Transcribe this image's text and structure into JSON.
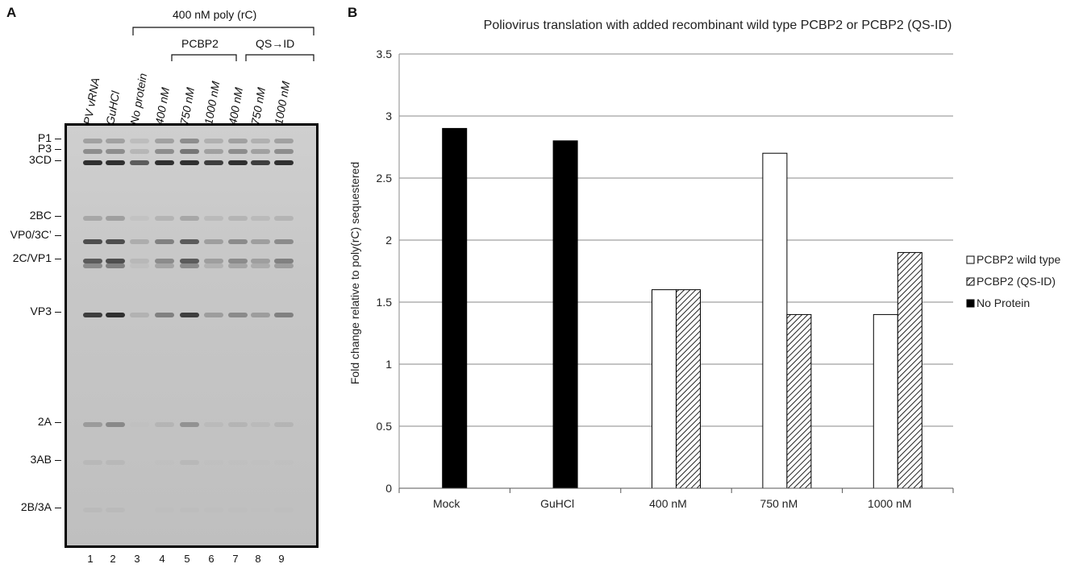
{
  "panel_a": {
    "letter": "A",
    "top_label": "400 nM poly (rC)",
    "group_wt": "PCBP2",
    "group_mut": "QS→ID",
    "lane_headers": [
      "PV vRNA",
      "GuHCl",
      "No protein",
      "400 nM",
      "750 nM",
      "1000 nM",
      "400 nM",
      "750 nM",
      "1000 nM"
    ],
    "lane_numbers": [
      "1",
      "2",
      "3",
      "4",
      "5",
      "6",
      "7",
      "8",
      "9"
    ],
    "markers": [
      "P1",
      "P3",
      "3CD",
      "2BC",
      "VP0/3C’",
      "2C/VP1",
      "VP3",
      "2A",
      "3AB",
      "2B/3A"
    ]
  },
  "panel_b": {
    "letter": "B"
  },
  "chart_data": {
    "type": "bar",
    "title": "Poliovirus translation with added recombinant wild type PCBP2 or PCBP2 (QS-ID)",
    "xlabel": "",
    "ylabel": "Fold change relative to poly(rC) sequestered",
    "ylim": [
      0,
      3.5
    ],
    "yticks": [
      "0",
      "0.5",
      "1",
      "1.5",
      "2",
      "2.5",
      "3",
      "3.5"
    ],
    "categories": [
      "Mock",
      "GuHCl",
      "400 nM",
      "750 nM",
      "1000 nM"
    ],
    "grid": true,
    "legend_position": "right",
    "series": [
      {
        "name": "PCBP2 wild type",
        "pattern": "white",
        "values": [
          null,
          null,
          1.6,
          2.7,
          1.4
        ]
      },
      {
        "name": "PCBP2 (QS-ID)",
        "pattern": "hatched",
        "values": [
          null,
          null,
          1.6,
          1.4,
          1.9
        ]
      },
      {
        "name": "No Protein",
        "pattern": "black",
        "values": [
          2.9,
          2.8,
          null,
          null,
          null
        ]
      }
    ]
  }
}
